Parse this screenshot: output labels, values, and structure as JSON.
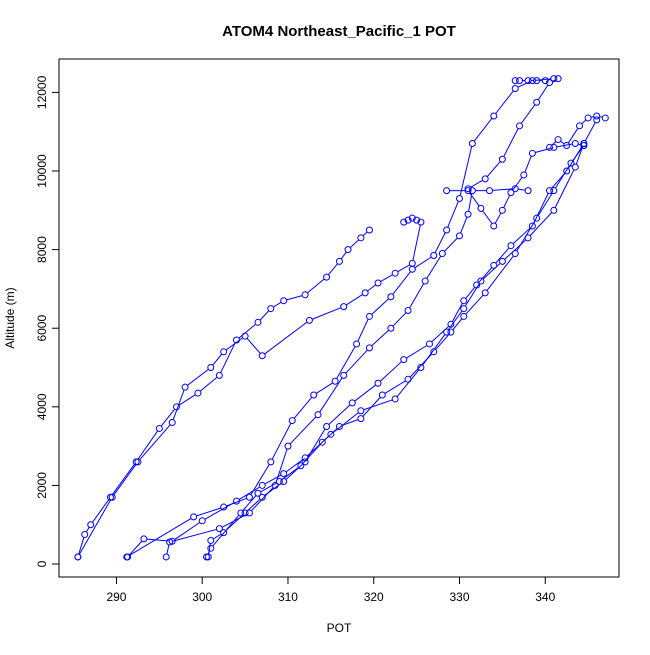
{
  "chart_data": {
    "type": "line",
    "title": "ATOM4 Northeast_Pacific_1 POT",
    "xlabel": "POT",
    "ylabel": "Altitude (m)",
    "xlim": [
      283.3,
      348.6
    ],
    "ylim": [
      -330,
      12850
    ],
    "xticks": [
      290,
      300,
      310,
      320,
      330,
      340
    ],
    "yticks": [
      0,
      2000,
      4000,
      6000,
      8000,
      10000,
      12000
    ],
    "marker": "open-circle",
    "line_color": "#0000FF",
    "series": [
      {
        "values": [
          [
            285.5,
            180
          ],
          [
            286.3,
            750
          ],
          [
            287.0,
            1000
          ],
          [
            289.3,
            1700
          ],
          [
            292.3,
            2600
          ],
          [
            295.0,
            3450
          ],
          [
            297.0,
            4000
          ],
          [
            299.5,
            4350
          ],
          [
            302.0,
            4800
          ],
          [
            304.0,
            5700
          ],
          [
            306.5,
            6150
          ],
          [
            308.0,
            6500
          ],
          [
            309.5,
            6700
          ],
          [
            312.0,
            6850
          ],
          [
            314.5,
            7300
          ],
          [
            316.0,
            7700
          ],
          [
            317.0,
            8000
          ],
          [
            318.5,
            8300
          ],
          [
            319.5,
            8500
          ]
        ]
      },
      {
        "values": [
          [
            285.5,
            180
          ],
          [
            289.5,
            1700
          ],
          [
            292.5,
            2600
          ],
          [
            296.5,
            3600
          ],
          [
            298.0,
            4500
          ],
          [
            301.0,
            5000
          ],
          [
            302.5,
            5400
          ],
          [
            305.0,
            5800
          ],
          [
            307.0,
            5300
          ],
          [
            312.5,
            6200
          ],
          [
            316.5,
            6550
          ],
          [
            319.0,
            6900
          ],
          [
            320.5,
            7150
          ],
          [
            322.5,
            7400
          ],
          [
            324.5,
            7650
          ],
          [
            325.5,
            8700
          ]
        ]
      },
      {
        "values": [
          [
            300.7,
            180
          ],
          [
            301.0,
            600
          ],
          [
            302.5,
            800
          ],
          [
            305.0,
            1300
          ],
          [
            307.0,
            1700
          ],
          [
            309.5,
            2100
          ],
          [
            312.0,
            2600
          ],
          [
            314.5,
            3500
          ],
          [
            317.5,
            4100
          ],
          [
            320.5,
            4600
          ],
          [
            323.5,
            5200
          ],
          [
            326.5,
            5600
          ],
          [
            329.0,
            6100
          ],
          [
            330.5,
            6700
          ],
          [
            332.0,
            7100
          ],
          [
            334.0,
            7600
          ],
          [
            336.0,
            8100
          ],
          [
            338.5,
            8600
          ],
          [
            340.5,
            9500
          ],
          [
            342.5,
            10000
          ],
          [
            344.5,
            10700
          ],
          [
            346.0,
            11300
          ]
        ]
      },
      {
        "values": [
          [
            300.5,
            180
          ],
          [
            301.0,
            400
          ],
          [
            304.5,
            1300
          ],
          [
            306.5,
            1800
          ],
          [
            309.0,
            2100
          ],
          [
            311.5,
            2500
          ],
          [
            314.0,
            3100
          ],
          [
            316.0,
            3500
          ],
          [
            318.5,
            3700
          ],
          [
            321.0,
            4300
          ],
          [
            324.0,
            4700
          ],
          [
            327.0,
            5400
          ],
          [
            329.0,
            5900
          ],
          [
            330.5,
            6300
          ],
          [
            333.0,
            6900
          ],
          [
            336.5,
            7900
          ],
          [
            339.0,
            8800
          ],
          [
            341.0,
            9500
          ],
          [
            343.0,
            10200
          ],
          [
            344.5,
            10650
          ]
        ]
      },
      {
        "values": [
          [
            291.3,
            180
          ],
          [
            293.2,
            640
          ],
          [
            296.5,
            580
          ],
          [
            300.0,
            1100
          ],
          [
            304.0,
            1600
          ],
          [
            307.0,
            2000
          ],
          [
            309.5,
            2300
          ],
          [
            312.0,
            2700
          ],
          [
            315.0,
            3300
          ],
          [
            318.5,
            3900
          ],
          [
            322.5,
            4200
          ],
          [
            325.5,
            5000
          ],
          [
            328.5,
            5900
          ],
          [
            330.5,
            6500
          ],
          [
            332.5,
            7200
          ],
          [
            335.0,
            7700
          ],
          [
            338.0,
            8300
          ],
          [
            341.0,
            9000
          ],
          [
            343.5,
            10100
          ],
          [
            344.5,
            10700
          ]
        ]
      },
      {
        "values": [
          [
            295.8,
            180
          ],
          [
            296.2,
            560
          ],
          [
            302.0,
            900
          ],
          [
            305.5,
            1300
          ],
          [
            308.5,
            2000
          ],
          [
            310.0,
            3000
          ],
          [
            313.5,
            3800
          ],
          [
            316.5,
            4800
          ],
          [
            319.5,
            5500
          ],
          [
            322.0,
            6000
          ],
          [
            324.0,
            6450
          ],
          [
            326.0,
            7200
          ],
          [
            328.0,
            7900
          ],
          [
            330.0,
            8350
          ],
          [
            331.0,
            8900
          ],
          [
            331.5,
            9500
          ],
          [
            333.5,
            9500
          ],
          [
            336.5,
            9550
          ],
          [
            338.0,
            9500
          ]
        ]
      },
      {
        "values": [
          [
            291.2,
            180
          ],
          [
            299.0,
            1200
          ],
          [
            302.5,
            1450
          ],
          [
            305.5,
            1700
          ],
          [
            308.0,
            2600
          ],
          [
            310.5,
            3650
          ],
          [
            313.0,
            4300
          ],
          [
            315.5,
            4650
          ],
          [
            318.0,
            5600
          ],
          [
            319.5,
            6300
          ],
          [
            322.0,
            6800
          ],
          [
            324.5,
            7500
          ],
          [
            327.0,
            7850
          ],
          [
            328.5,
            8500
          ],
          [
            330.0,
            9300
          ],
          [
            331.5,
            10700
          ],
          [
            334.0,
            11400
          ],
          [
            336.5,
            12100
          ],
          [
            338.5,
            12300
          ],
          [
            341.0,
            12350
          ]
        ]
      },
      {
        "values": [
          [
            328.5,
            9500
          ],
          [
            331.0,
            9500
          ],
          [
            332.5,
            9050
          ],
          [
            334.0,
            8600
          ],
          [
            335.0,
            9000
          ],
          [
            336.0,
            9450
          ],
          [
            337.5,
            9900
          ],
          [
            338.5,
            10450
          ],
          [
            341.0,
            10600
          ],
          [
            343.5,
            10700
          ],
          [
            344.5,
            10650
          ]
        ]
      },
      {
        "values": [
          [
            331.0,
            9550
          ],
          [
            333.0,
            9800
          ],
          [
            335.0,
            10300
          ],
          [
            337.0,
            11150
          ],
          [
            339.0,
            11750
          ],
          [
            340.5,
            12250
          ],
          [
            341.5,
            12350
          ]
        ]
      },
      {
        "values": [
          [
            340.5,
            10600
          ],
          [
            341.5,
            10800
          ],
          [
            342.5,
            10650
          ],
          [
            344.0,
            11150
          ],
          [
            345.0,
            11350
          ],
          [
            346.0,
            11400
          ],
          [
            347.0,
            11350
          ]
        ]
      },
      {
        "values": [
          [
            336.5,
            12300
          ],
          [
            337.0,
            12300
          ],
          [
            338.0,
            12300
          ],
          [
            339.0,
            12300
          ],
          [
            340.0,
            12300
          ]
        ]
      },
      {
        "values": [
          [
            323.5,
            8700
          ],
          [
            324.0,
            8750
          ],
          [
            324.5,
            8800
          ],
          [
            325.0,
            8750
          ]
        ]
      }
    ]
  }
}
